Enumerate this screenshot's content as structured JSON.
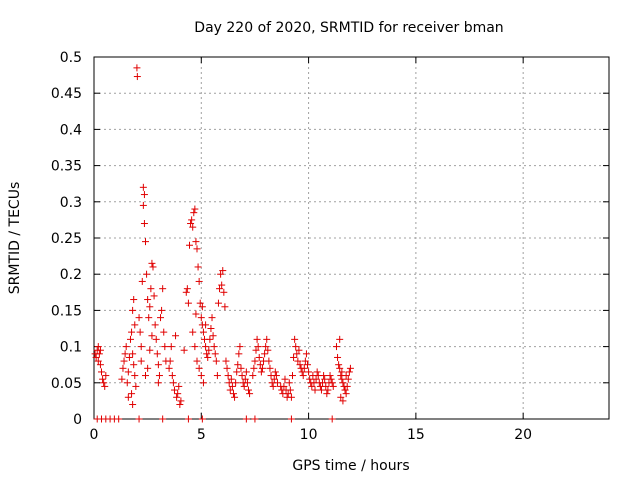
{
  "chart_data": {
    "type": "scatter",
    "title": "Day 220 of 2020, SRMTID for receiver bman",
    "xlabel": "GPS time / hours",
    "ylabel": "SRMTID / TECUs",
    "xlim": [
      0,
      24
    ],
    "ylim": [
      0,
      0.5
    ],
    "grid": true,
    "marker": "+",
    "marker_color": "#e00000",
    "x_ticks": [
      0,
      5,
      10,
      15,
      20
    ],
    "x_tick_labels": [
      "0",
      "5",
      "10",
      "15",
      "20"
    ],
    "y_ticks": [
      0,
      0.05,
      0.1,
      0.15,
      0.2,
      0.25,
      0.3,
      0.35,
      0.4,
      0.45,
      0.5
    ],
    "y_tick_labels": [
      "0",
      "0.05",
      "0.1",
      "0.15",
      "0.2",
      "0.25",
      "0.3",
      "0.35",
      "0.4",
      "0.45",
      "0.5"
    ],
    "series": [
      {
        "name": "SRMTID",
        "points": [
          [
            0.05,
            0.09
          ],
          [
            0.1,
            0.085
          ],
          [
            0.15,
            0.095
          ],
          [
            0.2,
            0.08
          ],
          [
            0.25,
            0.09
          ],
          [
            0.3,
            0.075
          ],
          [
            0.35,
            0.065
          ],
          [
            0.4,
            0.055
          ],
          [
            0.45,
            0.05
          ],
          [
            0.5,
            0.045
          ],
          [
            0.55,
            0.06
          ],
          [
            0.3,
            0.095
          ],
          [
            0.2,
            0.1
          ],
          [
            1.3,
            0.055
          ],
          [
            1.35,
            0.07
          ],
          [
            1.4,
            0.08
          ],
          [
            1.45,
            0.09
          ],
          [
            1.5,
            0.1
          ],
          [
            1.55,
            0.05
          ],
          [
            1.6,
            0.065
          ],
          [
            1.65,
            0.085
          ],
          [
            1.7,
            0.11
          ],
          [
            1.75,
            0.12
          ],
          [
            1.8,
            0.09
          ],
          [
            1.85,
            0.075
          ],
          [
            1.9,
            0.06
          ],
          [
            1.95,
            0.045
          ],
          [
            1.6,
            0.03
          ],
          [
            1.8,
            0.02
          ],
          [
            1.75,
            0.035
          ],
          [
            1.8,
            0.15
          ],
          [
            1.85,
            0.165
          ],
          [
            1.9,
            0.13
          ],
          [
            2.0,
            0.485
          ],
          [
            2.02,
            0.473
          ],
          [
            2.1,
            0.14
          ],
          [
            2.15,
            0.12
          ],
          [
            2.2,
            0.1
          ],
          [
            2.25,
            0.19
          ],
          [
            2.3,
            0.32
          ],
          [
            2.35,
            0.31
          ],
          [
            2.3,
            0.295
          ],
          [
            2.35,
            0.27
          ],
          [
            2.4,
            0.245
          ],
          [
            2.45,
            0.2
          ],
          [
            2.5,
            0.165
          ],
          [
            2.55,
            0.14
          ],
          [
            2.6,
            0.155
          ],
          [
            2.65,
            0.18
          ],
          [
            2.7,
            0.215
          ],
          [
            2.75,
            0.21
          ],
          [
            2.8,
            0.17
          ],
          [
            2.85,
            0.13
          ],
          [
            2.9,
            0.11
          ],
          [
            2.95,
            0.09
          ],
          [
            3.0,
            0.075
          ],
          [
            3.05,
            0.06
          ],
          [
            3.1,
            0.14
          ],
          [
            3.15,
            0.15
          ],
          [
            3.2,
            0.18
          ],
          [
            3.25,
            0.12
          ],
          [
            3.3,
            0.1
          ],
          [
            3.35,
            0.08
          ],
          [
            2.4,
            0.06
          ],
          [
            2.5,
            0.07
          ],
          [
            2.6,
            0.095
          ],
          [
            2.7,
            0.115
          ],
          [
            2.2,
            0.08
          ],
          [
            3.0,
            0.05
          ],
          [
            3.5,
            0.07
          ],
          [
            3.55,
            0.08
          ],
          [
            3.6,
            0.1
          ],
          [
            3.65,
            0.06
          ],
          [
            3.7,
            0.05
          ],
          [
            3.75,
            0.04
          ],
          [
            3.8,
            0.115
          ],
          [
            3.85,
            0.03
          ],
          [
            3.9,
            0.035
          ],
          [
            3.95,
            0.045
          ],
          [
            4.0,
            0.02
          ],
          [
            4.05,
            0.025
          ],
          [
            4.2,
            0.095
          ],
          [
            4.3,
            0.175
          ],
          [
            4.35,
            0.18
          ],
          [
            4.4,
            0.16
          ],
          [
            4.45,
            0.24
          ],
          [
            4.5,
            0.27
          ],
          [
            4.55,
            0.275
          ],
          [
            4.6,
            0.265
          ],
          [
            4.65,
            0.285
          ],
          [
            4.7,
            0.29
          ],
          [
            4.75,
            0.245
          ],
          [
            4.8,
            0.235
          ],
          [
            4.85,
            0.21
          ],
          [
            4.9,
            0.19
          ],
          [
            4.95,
            0.16
          ],
          [
            5.0,
            0.14
          ],
          [
            5.05,
            0.13
          ],
          [
            5.1,
            0.12
          ],
          [
            5.15,
            0.11
          ],
          [
            5.2,
            0.1
          ],
          [
            5.25,
            0.09
          ],
          [
            5.3,
            0.085
          ],
          [
            5.35,
            0.095
          ],
          [
            5.4,
            0.11
          ],
          [
            5.45,
            0.125
          ],
          [
            5.5,
            0.14
          ],
          [
            5.55,
            0.115
          ],
          [
            5.6,
            0.1
          ],
          [
            5.65,
            0.09
          ],
          [
            5.7,
            0.08
          ],
          [
            5.75,
            0.06
          ],
          [
            4.8,
            0.08
          ],
          [
            4.9,
            0.07
          ],
          [
            5.0,
            0.06
          ],
          [
            5.1,
            0.05
          ],
          [
            4.7,
            0.1
          ],
          [
            4.6,
            0.12
          ],
          [
            4.75,
            0.145
          ],
          [
            5.05,
            0.155
          ],
          [
            5.2,
            0.13
          ],
          [
            5.8,
            0.16
          ],
          [
            5.85,
            0.18
          ],
          [
            5.9,
            0.2
          ],
          [
            5.95,
            0.185
          ],
          [
            6.0,
            0.205
          ],
          [
            6.05,
            0.175
          ],
          [
            6.1,
            0.155
          ],
          [
            6.15,
            0.08
          ],
          [
            6.2,
            0.07
          ],
          [
            6.25,
            0.06
          ],
          [
            6.3,
            0.05
          ],
          [
            6.35,
            0.04
          ],
          [
            6.4,
            0.055
          ],
          [
            6.45,
            0.045
          ],
          [
            6.5,
            0.035
          ],
          [
            6.55,
            0.03
          ],
          [
            6.6,
            0.05
          ],
          [
            6.65,
            0.065
          ],
          [
            6.7,
            0.075
          ],
          [
            6.75,
            0.09
          ],
          [
            6.8,
            0.1
          ],
          [
            6.85,
            0.07
          ],
          [
            6.9,
            0.06
          ],
          [
            6.95,
            0.05
          ],
          [
            7.0,
            0.045
          ],
          [
            7.05,
            0.055
          ],
          [
            7.1,
            0.065
          ],
          [
            7.15,
            0.05
          ],
          [
            7.2,
            0.04
          ],
          [
            7.25,
            0.035
          ],
          [
            7.4,
            0.06
          ],
          [
            7.45,
            0.07
          ],
          [
            7.5,
            0.08
          ],
          [
            7.55,
            0.095
          ],
          [
            7.6,
            0.11
          ],
          [
            7.65,
            0.1
          ],
          [
            7.7,
            0.085
          ],
          [
            7.75,
            0.075
          ],
          [
            7.8,
            0.065
          ],
          [
            7.85,
            0.07
          ],
          [
            7.9,
            0.08
          ],
          [
            7.95,
            0.09
          ],
          [
            8.0,
            0.1
          ],
          [
            8.05,
            0.11
          ],
          [
            8.1,
            0.095
          ],
          [
            8.15,
            0.08
          ],
          [
            8.2,
            0.07
          ],
          [
            8.25,
            0.06
          ],
          [
            8.3,
            0.05
          ],
          [
            8.35,
            0.045
          ],
          [
            8.4,
            0.055
          ],
          [
            8.45,
            0.065
          ],
          [
            8.5,
            0.06
          ],
          [
            8.55,
            0.05
          ],
          [
            8.7,
            0.045
          ],
          [
            8.75,
            0.04
          ],
          [
            8.8,
            0.035
          ],
          [
            8.85,
            0.045
          ],
          [
            8.9,
            0.055
          ],
          [
            8.95,
            0.04
          ],
          [
            9.0,
            0.03
          ],
          [
            9.05,
            0.035
          ],
          [
            9.1,
            0.05
          ],
          [
            9.15,
            0.04
          ],
          [
            9.2,
            0.03
          ],
          [
            9.25,
            0.06
          ],
          [
            9.3,
            0.085
          ],
          [
            9.35,
            0.11
          ],
          [
            9.4,
            0.1
          ],
          [
            9.45,
            0.09
          ],
          [
            9.5,
            0.08
          ],
          [
            9.55,
            0.095
          ],
          [
            9.6,
            0.075
          ],
          [
            9.65,
            0.07
          ],
          [
            9.7,
            0.065
          ],
          [
            9.75,
            0.06
          ],
          [
            9.8,
            0.07
          ],
          [
            9.85,
            0.08
          ],
          [
            9.9,
            0.09
          ],
          [
            9.95,
            0.075
          ],
          [
            10.0,
            0.065
          ],
          [
            10.05,
            0.055
          ],
          [
            10.1,
            0.05
          ],
          [
            10.15,
            0.045
          ],
          [
            10.2,
            0.06
          ],
          [
            10.25,
            0.05
          ],
          [
            10.3,
            0.04
          ],
          [
            10.35,
            0.055
          ],
          [
            10.4,
            0.065
          ],
          [
            10.45,
            0.06
          ],
          [
            10.5,
            0.05
          ],
          [
            10.55,
            0.045
          ],
          [
            10.6,
            0.04
          ],
          [
            10.65,
            0.05
          ],
          [
            10.7,
            0.06
          ],
          [
            10.75,
            0.055
          ],
          [
            10.8,
            0.045
          ],
          [
            10.85,
            0.035
          ],
          [
            10.9,
            0.04
          ],
          [
            10.95,
            0.05
          ],
          [
            11.0,
            0.06
          ],
          [
            11.05,
            0.055
          ],
          [
            11.1,
            0.05
          ],
          [
            11.15,
            0.045
          ],
          [
            11.3,
            0.1
          ],
          [
            11.35,
            0.085
          ],
          [
            11.4,
            0.075
          ],
          [
            11.45,
            0.07
          ],
          [
            11.5,
            0.06
          ],
          [
            11.55,
            0.055
          ],
          [
            11.6,
            0.05
          ],
          [
            11.65,
            0.045
          ],
          [
            11.7,
            0.04
          ],
          [
            11.75,
            0.035
          ],
          [
            11.8,
            0.045
          ],
          [
            11.85,
            0.055
          ],
          [
            11.9,
            0.065
          ],
          [
            11.95,
            0.07
          ],
          [
            11.5,
            0.03
          ],
          [
            11.6,
            0.025
          ],
          [
            11.7,
            0.04
          ],
          [
            11.45,
            0.11
          ],
          [
            11.55,
            0.065
          ],
          [
            11.75,
            0.06
          ],
          [
            0.15,
            0
          ],
          [
            0.35,
            0
          ],
          [
            0.55,
            0
          ],
          [
            0.75,
            0
          ],
          [
            0.95,
            0
          ],
          [
            1.15,
            0
          ],
          [
            2.1,
            0
          ],
          [
            3.2,
            0
          ],
          [
            4.4,
            0
          ],
          [
            5.05,
            0
          ],
          [
            7.1,
            0
          ],
          [
            7.5,
            0
          ],
          [
            9.2,
            0
          ],
          [
            11.1,
            0
          ]
        ]
      }
    ]
  }
}
